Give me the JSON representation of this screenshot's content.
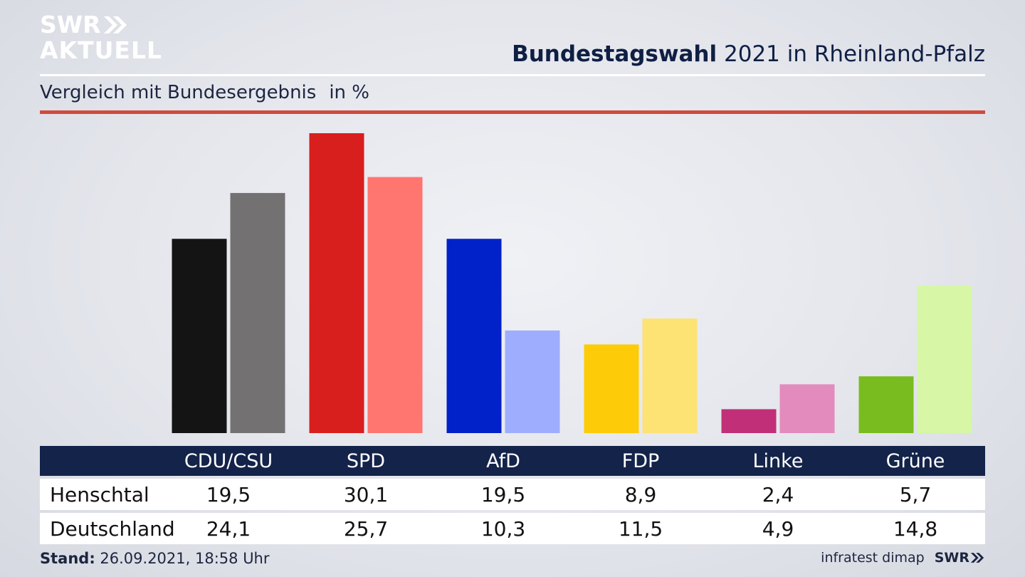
{
  "header": {
    "logo_line1": "SWR",
    "logo_line2": "AKTUELL",
    "logo_icon": "double-chevron-icon",
    "title_bold": "Bundestagswahl",
    "title_rest": "2021 in Rheinland-Pfalz",
    "subtitle": "Vergleich mit Bundesergebnis",
    "unit": "in %"
  },
  "footer": {
    "stand_label": "Stand:",
    "stand_value": "26.09.2021, 18:58 Uhr",
    "source": "infratest dimap",
    "brand": "SWR"
  },
  "table": {
    "row_labels": [
      "Henschtal",
      "Deutschland"
    ]
  },
  "chart_data": {
    "type": "bar",
    "categories": [
      "CDU/CSU",
      "SPD",
      "AfD",
      "FDP",
      "Linke",
      "Grüne"
    ],
    "series": [
      {
        "name": "Henschtal",
        "values": [
          19.5,
          30.1,
          19.5,
          8.9,
          2.4,
          5.7
        ],
        "display": [
          "19,5",
          "30,1",
          "19,5",
          "8,9",
          "2,4",
          "5,7"
        ]
      },
      {
        "name": "Deutschland",
        "values": [
          24.1,
          25.7,
          10.3,
          11.5,
          4.9,
          14.8
        ],
        "display": [
          "24,1",
          "25,7",
          "10,3",
          "11,5",
          "4,9",
          "14,8"
        ]
      }
    ],
    "colors": [
      [
        "#141414",
        "#737171"
      ],
      [
        "#d91e1e",
        "#ff7570"
      ],
      [
        "#0022c8",
        "#9fadff"
      ],
      [
        "#fdcb08",
        "#fde274"
      ],
      [
        "#c12f78",
        "#e38bbd"
      ],
      [
        "#78bc1f",
        "#d7f6a6"
      ]
    ],
    "ylim": [
      0,
      30.1
    ],
    "grid": false,
    "legend": "table-below"
  }
}
